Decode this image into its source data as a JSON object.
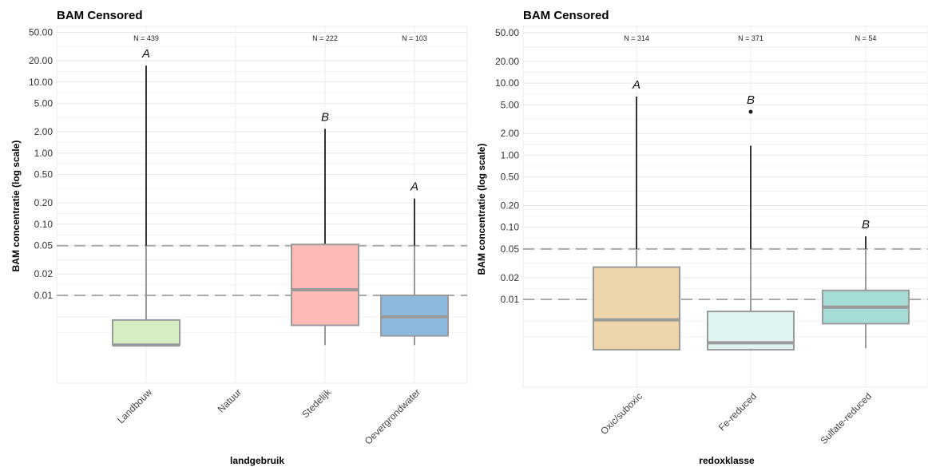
{
  "chart_data": [
    {
      "type": "box",
      "title": "BAM Censored",
      "xlabel": "landgebruik",
      "ylabel": "BAM concentratie (log scale)",
      "yscale": "log",
      "ylim": [
        0.002,
        50
      ],
      "yticks": [
        "50.00",
        "20.00",
        "10.00",
        "5.00",
        "2.00",
        "1.00",
        "0.50",
        "0.20",
        "0.10",
        "0.05",
        "0.02",
        "0.01"
      ],
      "reference_lines": [
        0.05,
        0.01
      ],
      "grid": true,
      "categories": [
        "Landbouw",
        "Natuur",
        "Stedelijk",
        "Oevergrondwater"
      ],
      "boxes": [
        {
          "category": "Landbouw",
          "n_label": "N = 439",
          "q1": 0.002,
          "median": 0.002,
          "q3": 0.0045,
          "whisker_low": 0.002,
          "whisker_high": 17,
          "outliers": [],
          "group": "A",
          "color": "#d6efc2"
        },
        {
          "category": "Natuur",
          "n_label": "",
          "q1": null,
          "median": null,
          "q3": null,
          "whisker_low": null,
          "whisker_high": null,
          "outliers": [],
          "group": "",
          "color": ""
        },
        {
          "category": "Stedelijk",
          "n_label": "N = 222",
          "q1": 0.0038,
          "median": 0.012,
          "q3": 0.052,
          "whisker_low": 0.002,
          "whisker_high": 2.2,
          "outliers": [],
          "group": "B",
          "color": "#fcbcb5"
        },
        {
          "category": "Oevergrondwater",
          "n_label": "N = 103",
          "q1": 0.0027,
          "median": 0.005,
          "q3": 0.01,
          "whisker_low": 0.002,
          "whisker_high": 0.23,
          "outliers": [],
          "group": "A",
          "color": "#8cbadf"
        }
      ]
    },
    {
      "type": "box",
      "title": "BAM Censored",
      "xlabel": "redoxklasse",
      "ylabel": "BAM concentratie (log scale)",
      "yscale": "log",
      "ylim": [
        0.002,
        50
      ],
      "yticks": [
        "50.00",
        "20.00",
        "10.00",
        "5.00",
        "2.00",
        "1.00",
        "0.50",
        "0.20",
        "0.10",
        "0.05",
        "0.02",
        "0.01"
      ],
      "reference_lines": [
        0.05,
        0.01
      ],
      "grid": true,
      "categories": [
        "Oxic/suboxic",
        "Fe-reduced",
        "Sulfate-reduced"
      ],
      "boxes": [
        {
          "category": "Oxic/suboxic",
          "n_label": "N = 314",
          "q1": 0.002,
          "median": 0.0052,
          "q3": 0.028,
          "whisker_low": 0.002,
          "whisker_high": 6.5,
          "outliers": [],
          "group": "A",
          "color": "#ecd6a9"
        },
        {
          "category": "Fe-reduced",
          "n_label": "N = 371",
          "q1": 0.002,
          "median": 0.0025,
          "q3": 0.0068,
          "whisker_low": 0.002,
          "whisker_high": 1.35,
          "outliers": [
            4.0
          ],
          "group": "B",
          "color": "#dff3f0"
        },
        {
          "category": "Sulfate-reduced",
          "n_label": "N = 54",
          "q1": 0.0046,
          "median": 0.0078,
          "q3": 0.0133,
          "whisker_low": 0.0021,
          "whisker_high": 0.075,
          "outliers": [],
          "group": "B",
          "color": "#a6dcd6"
        }
      ]
    }
  ]
}
